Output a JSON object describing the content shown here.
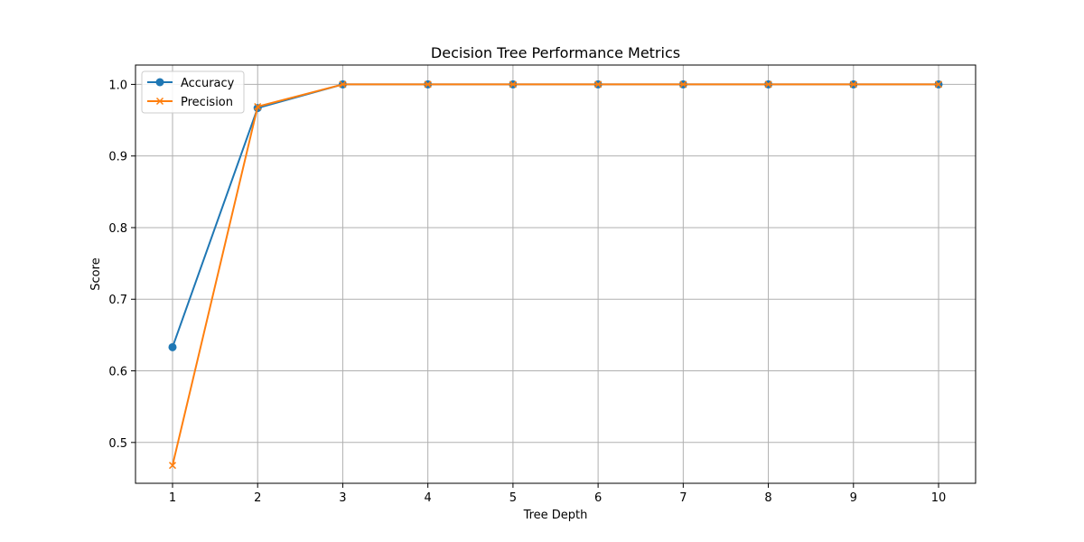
{
  "chart_data": {
    "type": "line",
    "title": "Decision Tree Performance Metrics",
    "xlabel": "Tree Depth",
    "ylabel": "Score",
    "x": [
      1,
      2,
      3,
      4,
      5,
      6,
      7,
      8,
      9,
      10
    ],
    "xticks": [
      "1",
      "2",
      "3",
      "4",
      "5",
      "6",
      "7",
      "8",
      "9",
      "10"
    ],
    "yticks": [
      "0.5",
      "0.6",
      "0.7",
      "0.8",
      "0.9",
      "1.0"
    ],
    "ylim": [
      0.443,
      1.027
    ],
    "grid": true,
    "legend_position": "top-left",
    "series": [
      {
        "name": "Accuracy",
        "color": "#1f77b4",
        "marker": "circle",
        "values": [
          0.633,
          0.967,
          1.0,
          1.0,
          1.0,
          1.0,
          1.0,
          1.0,
          1.0,
          1.0
        ]
      },
      {
        "name": "Precision",
        "color": "#ff7f0e",
        "marker": "x",
        "values": [
          0.468,
          0.969,
          1.0,
          1.0,
          1.0,
          1.0,
          1.0,
          1.0,
          1.0,
          1.0
        ]
      }
    ]
  }
}
